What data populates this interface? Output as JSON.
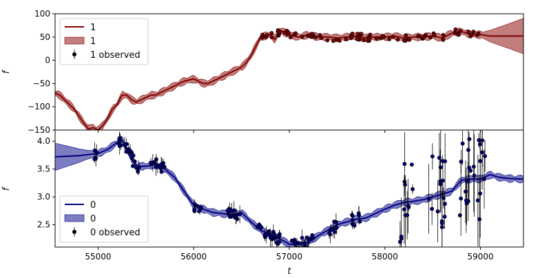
{
  "chart_data": [
    {
      "type": "line",
      "xlabel": "",
      "ylabel": "f",
      "xlim": [
        54550,
        59450
      ],
      "ylim": [
        -150,
        100
      ],
      "yticks": [
        100,
        50,
        0,
        -50,
        -100,
        -150
      ],
      "tick_labels_y": [
        "100",
        "50",
        "0",
        "−50",
        "−100",
        "−150"
      ],
      "colors": {
        "line": "#7f0000",
        "band": "#b35c5c",
        "marker": "#7f0000"
      },
      "legend_position": "upper-left",
      "legend": [
        "1",
        "1",
        "1 observed"
      ],
      "series": [
        {
          "name": "1",
          "x": [
            54550,
            54600,
            54650,
            54700,
            54750,
            54800,
            54850,
            54900,
            54950,
            55000,
            55050,
            55100,
            55150,
            55200,
            55250,
            55300,
            55350,
            55400,
            55450,
            55500,
            55550,
            55600,
            55700,
            55800,
            55900,
            56000,
            56100,
            56150,
            56200,
            56300,
            56400,
            56500,
            56550,
            56600,
            56650,
            56700,
            56800,
            56850,
            56900,
            57000,
            57100,
            57200,
            57300,
            57400,
            57500,
            57600,
            57700,
            57800,
            57900,
            58000,
            58100,
            58200,
            58300,
            58400,
            58500,
            58600,
            58700,
            58800,
            58900,
            59000,
            59100,
            59200,
            59300,
            59450
          ],
          "y": [
            -70,
            -75,
            -85,
            -95,
            -105,
            -120,
            -135,
            -148,
            -145,
            -150,
            -140,
            -125,
            -105,
            -95,
            -75,
            -75,
            -85,
            -90,
            -85,
            -80,
            -75,
            -75,
            -65,
            -55,
            -45,
            -40,
            -50,
            -50,
            -45,
            -35,
            -25,
            -15,
            -5,
            10,
            30,
            50,
            55,
            45,
            65,
            55,
            50,
            55,
            50,
            50,
            48,
            50,
            52,
            48,
            50,
            50,
            52,
            48,
            50,
            50,
            52,
            48,
            58,
            62,
            55,
            55,
            52,
            52,
            52,
            52
          ]
        }
      ],
      "observed_x_range": [
        56700,
        59000
      ]
    },
    {
      "type": "line",
      "xlabel": "t",
      "ylabel": "f",
      "xlim": [
        54550,
        59450
      ],
      "ylim": [
        2.1,
        4.2
      ],
      "xticks": [
        55000,
        56000,
        57000,
        58000,
        59000
      ],
      "tick_labels_x": [
        "55000",
        "56000",
        "57000",
        "58000",
        "59000"
      ],
      "yticks": [
        4.0,
        3.5,
        3.0,
        2.5
      ],
      "tick_labels_y": [
        "4.0",
        "3.5",
        "3.0",
        "2.5"
      ],
      "colors": {
        "line": "#000080",
        "band": "#5c5cb3",
        "marker": "#000080"
      },
      "legend_position": "lower-left",
      "legend": [
        "0",
        "0",
        "0 observed"
      ],
      "series": [
        {
          "name": "0",
          "x": [
            54550,
            54800,
            55000,
            55100,
            55200,
            55250,
            55300,
            55350,
            55400,
            55500,
            55600,
            55700,
            55800,
            55900,
            56000,
            56100,
            56200,
            56300,
            56400,
            56500,
            56600,
            56700,
            56800,
            56900,
            57000,
            57100,
            57200,
            57300,
            57400,
            57500,
            57600,
            57700,
            57800,
            57900,
            58000,
            58100,
            58200,
            58300,
            58400,
            58500,
            58600,
            58700,
            58800,
            58900,
            59000,
            59100,
            59200,
            59300,
            59450
          ],
          "y": [
            3.72,
            3.74,
            3.78,
            3.85,
            3.98,
            4.02,
            3.85,
            3.7,
            3.55,
            3.55,
            3.58,
            3.5,
            3.35,
            3.1,
            2.85,
            2.78,
            2.72,
            2.7,
            2.68,
            2.72,
            2.55,
            2.4,
            2.32,
            2.25,
            2.15,
            2.15,
            2.18,
            2.3,
            2.4,
            2.5,
            2.55,
            2.6,
            2.62,
            2.7,
            2.78,
            2.85,
            2.9,
            2.92,
            2.95,
            3.0,
            3.05,
            3.1,
            3.3,
            3.32,
            3.32,
            3.4,
            3.35,
            3.33,
            3.32
          ]
        }
      ],
      "observed_segments": [
        [
          54950,
          55000
        ],
        [
          55200,
          55450
        ],
        [
          55550,
          55700
        ],
        [
          56000,
          56100
        ],
        [
          56350,
          56500
        ],
        [
          56650,
          56900
        ],
        [
          57000,
          57250
        ],
        [
          57400,
          57500
        ],
        [
          57650,
          57750
        ],
        [
          58150,
          58300
        ],
        [
          58450,
          58650
        ],
        [
          58750,
          59050
        ]
      ]
    }
  ]
}
